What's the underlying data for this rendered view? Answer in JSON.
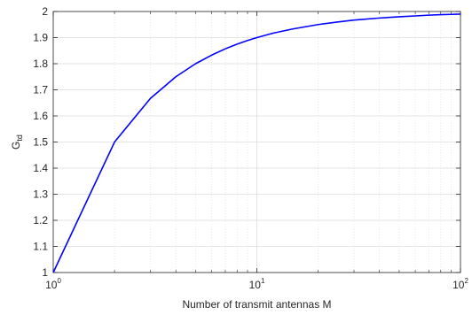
{
  "chart_data": {
    "type": "line",
    "title": "",
    "xlabel": "Number of transmit antennas M",
    "ylabel_main": "G",
    "ylabel_sub": "td",
    "xscale": "log",
    "xlim": [
      1,
      100
    ],
    "ylim": [
      1,
      2
    ],
    "x_ticks": [
      {
        "base": "10",
        "exp": "0"
      },
      {
        "base": "10",
        "exp": "1"
      },
      {
        "base": "10",
        "exp": "2"
      }
    ],
    "y_ticks": [
      "1",
      "1.1",
      "1.2",
      "1.3",
      "1.4",
      "1.5",
      "1.6",
      "1.7",
      "1.8",
      "1.9",
      "2"
    ],
    "grid": true,
    "minor_grid": true,
    "line_color": "#0000ff",
    "series": [
      {
        "x": [
          1,
          2,
          3,
          4,
          5,
          6,
          7,
          8,
          9,
          10,
          12,
          15,
          20,
          25,
          30,
          40,
          50,
          60,
          70,
          80,
          90,
          100
        ],
        "values": [
          1,
          1.5,
          1.667,
          1.75,
          1.8,
          1.833,
          1.857,
          1.875,
          1.889,
          1.9,
          1.917,
          1.933,
          1.95,
          1.96,
          1.967,
          1.975,
          1.98,
          1.983,
          1.986,
          1.988,
          1.989,
          1.99
        ]
      }
    ]
  }
}
